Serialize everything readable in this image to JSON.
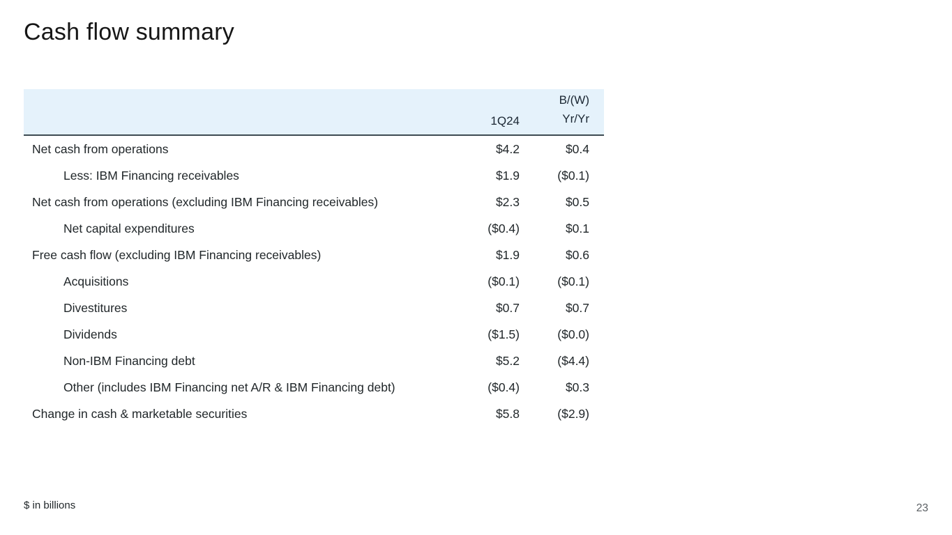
{
  "title": "Cash flow summary",
  "table": {
    "header": {
      "period": "1Q24",
      "change_line1": "B/(W)",
      "change_line2": "Yr/Yr"
    },
    "rows": [
      {
        "label": "Net cash from operations",
        "indent": false,
        "value_1q24": "$4.2",
        "value_yryr": "$0.4"
      },
      {
        "label": "Less: IBM Financing receivables",
        "indent": true,
        "value_1q24": "$1.9",
        "value_yryr": "($0.1)"
      },
      {
        "label": "Net cash from operations (excluding IBM Financing receivables)",
        "indent": false,
        "value_1q24": "$2.3",
        "value_yryr": "$0.5"
      },
      {
        "label": "Net capital expenditures",
        "indent": true,
        "value_1q24": "($0.4)",
        "value_yryr": "$0.1"
      },
      {
        "label": "Free cash flow (excluding IBM Financing receivables)",
        "indent": false,
        "value_1q24": "$1.9",
        "value_yryr": "$0.6"
      },
      {
        "label": "Acquisitions",
        "indent": true,
        "value_1q24": "($0.1)",
        "value_yryr": "($0.1)"
      },
      {
        "label": "Divestitures",
        "indent": true,
        "value_1q24": "$0.7",
        "value_yryr": "$0.7"
      },
      {
        "label": "Dividends",
        "indent": true,
        "value_1q24": "($1.5)",
        "value_yryr": "($0.0)"
      },
      {
        "label": "Non-IBM Financing debt",
        "indent": true,
        "value_1q24": "$5.2",
        "value_yryr": "($4.4)"
      },
      {
        "label": "Other (includes IBM Financing net A/R & IBM Financing debt)",
        "indent": true,
        "value_1q24": "($0.4)",
        "value_yryr": "$0.3"
      },
      {
        "label": "Change in cash & marketable securities",
        "indent": false,
        "value_1q24": "$5.8",
        "value_yryr": "($2.9)"
      }
    ]
  },
  "footer": {
    "note": "$ in billions",
    "page_number": "23"
  },
  "colors": {
    "header_band": "#e5f2fb",
    "header_border": "#3d4a52",
    "text": "#21272a",
    "page_number": "#5a5f63"
  }
}
